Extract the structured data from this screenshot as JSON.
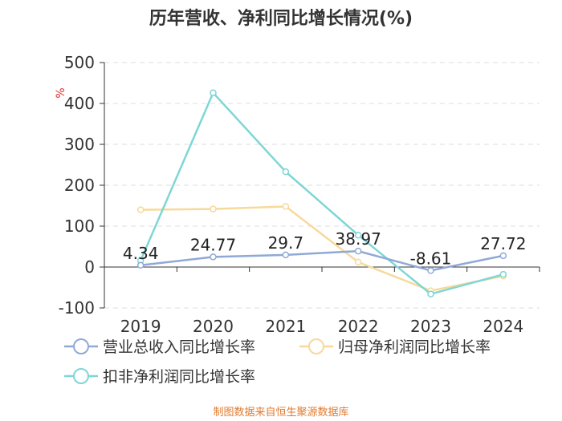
{
  "chart_data": {
    "type": "line",
    "title": "历年营收、净利同比增长情况(%)",
    "y_unit": "%",
    "categories": [
      "2019",
      "2020",
      "2021",
      "2022",
      "2023",
      "2024"
    ],
    "ylim": [
      -100,
      500
    ],
    "yticks": [
      -100,
      0,
      100,
      200,
      300,
      400,
      500
    ],
    "grid": true,
    "legend_position": "bottom",
    "series": [
      {
        "name": "营业总收入同比增长率",
        "color": "#8fa9d6",
        "values": [
          4.34,
          24.77,
          29.7,
          38.97,
          -8.61,
          27.72
        ],
        "labels": [
          "4.34",
          "24.77",
          "29.7",
          "38.97",
          "-8.61",
          "27.72"
        ]
      },
      {
        "name": "归母净利润同比增长率",
        "color": "#f7d99a",
        "values": [
          140,
          142,
          148,
          12,
          -58,
          -22
        ]
      },
      {
        "name": "扣非净利润同比增长率",
        "color": "#7fd6d6",
        "values": [
          16,
          426,
          233,
          78,
          -66,
          -18
        ]
      }
    ]
  },
  "footer": {
    "source": "制图数据来自恒生聚源数据库"
  }
}
